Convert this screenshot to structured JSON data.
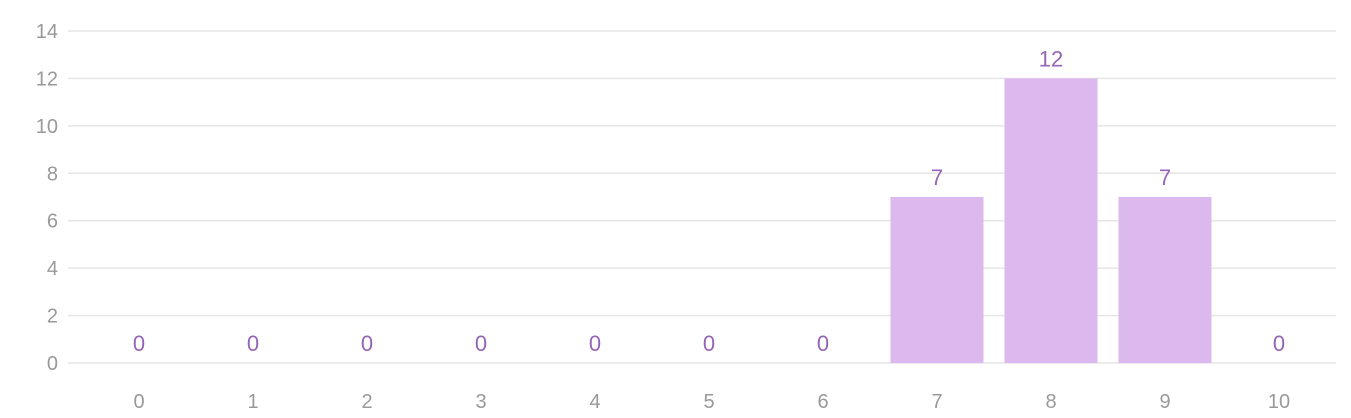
{
  "chart_data": {
    "type": "bar",
    "title": "",
    "xlabel": "",
    "ylabel": "",
    "categories": [
      "0",
      "1",
      "2",
      "3",
      "4",
      "5",
      "6",
      "7",
      "8",
      "9",
      "10"
    ],
    "values": [
      0,
      0,
      0,
      0,
      0,
      0,
      0,
      7,
      12,
      7,
      0
    ],
    "ylim": [
      0,
      14
    ],
    "yticks": [
      0,
      2,
      4,
      6,
      8,
      10,
      12,
      14
    ],
    "grid": true,
    "data_labels": true,
    "colors": {
      "bar": "#dbb8ee",
      "label": "#9565b5",
      "grid": "#e6e6e6",
      "tick": "#999999"
    }
  }
}
